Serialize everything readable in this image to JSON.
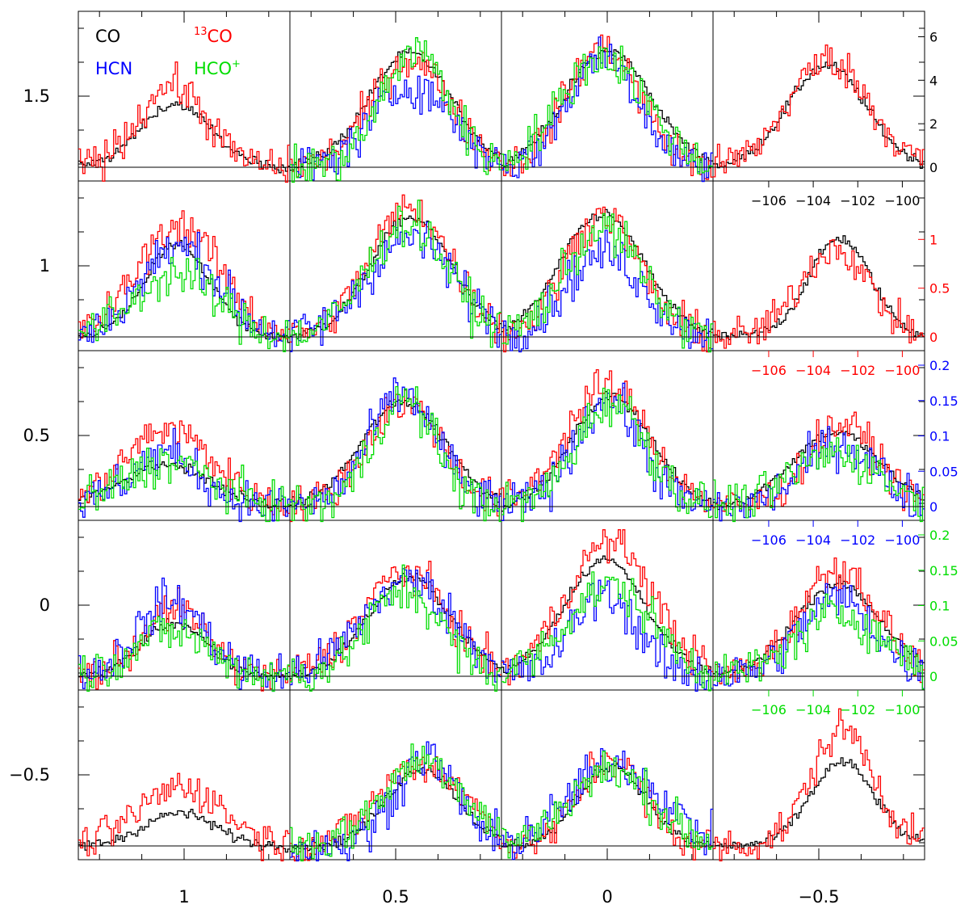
{
  "chart_data": {
    "type": "line",
    "style": "step",
    "grid_rows": 5,
    "grid_cols": 4,
    "outer_axes": {
      "x_ticks": [
        1,
        0.5,
        0,
        -0.5
      ],
      "x_tick_labels": [
        "1",
        "0.5",
        "0",
        "−0.5"
      ],
      "x_range": [
        1.25,
        -0.75
      ],
      "y_ticks": [
        1.5,
        1,
        0.5,
        0,
        -0.5
      ],
      "y_tick_labels": [
        "1.5",
        "1",
        "0.5",
        "0",
        "−0.5"
      ],
      "y_range": [
        -0.75,
        1.75
      ]
    },
    "velocity_range": [
      -108.5,
      -99.0
    ],
    "velocity_ticks": [
      -106,
      -104,
      -102,
      -100
    ],
    "series": [
      {
        "name": "CO",
        "legend": "CO",
        "color": "#000000",
        "scale_ticks": [
          0,
          2,
          4,
          6
        ],
        "scale_labels": [
          "0",
          "2",
          "4",
          "6"
        ],
        "scale_range": [
          -0.5,
          6.5
        ],
        "velocity_labels": [
          "−106",
          "−104",
          "−102",
          "−100"
        ]
      },
      {
        "name": "13CO",
        "legend_sup": "13",
        "legend": "CO",
        "color": "#ff0000",
        "scale_ticks": [
          0,
          0.5,
          1
        ],
        "scale_labels": [
          "0",
          "0.5",
          "1"
        ],
        "scale_range": [
          -0.08,
          1.45
        ],
        "velocity_labels": [
          "−106",
          "−104",
          "−102",
          "−100"
        ]
      },
      {
        "name": "HCN",
        "legend": "HCN",
        "color": "#0000ff",
        "scale_ticks": [
          0,
          0.05,
          0.1,
          0.15,
          0.2
        ],
        "scale_labels": [
          "0",
          "0.05",
          "0.1",
          "0.15",
          "0.2"
        ],
        "scale_range": [
          -0.015,
          0.2
        ],
        "velocity_labels": [
          "−106",
          "−104",
          "−102",
          "−100"
        ]
      },
      {
        "name": "HCO+",
        "legend": "HCO",
        "legend_sup": "+",
        "color": "#00dd00",
        "scale_ticks": [
          0,
          0.05,
          0.1,
          0.15,
          0.2
        ],
        "scale_labels": [
          "0",
          "0.05",
          "0.1",
          "0.15",
          "0.2"
        ],
        "scale_range": [
          -0.015,
          0.2
        ],
        "velocity_labels": [
          "−106",
          "−104",
          "−102",
          "−100"
        ]
      }
    ],
    "peak_velocity": [
      [
        -104.2,
        -103.0,
        -103.8,
        -103.2
      ],
      [
        -104.0,
        -103.2,
        -103.8,
        -103.0
      ],
      [
        -104.5,
        -103.3,
        -103.6,
        -102.8
      ],
      [
        -104.3,
        -103.2,
        -103.8,
        -102.8
      ],
      [
        -104.0,
        -102.5,
        -103.5,
        -102.8
      ]
    ],
    "line_width": 1.3,
    "peak_fraction": {
      "CO": [
        [
          0.42,
          0.76,
          0.78,
          0.68
        ],
        [
          0.62,
          0.8,
          0.82,
          0.66
        ],
        [
          0.28,
          0.7,
          0.74,
          0.5
        ],
        [
          0.36,
          0.66,
          0.78,
          0.62
        ],
        [
          0.22,
          0.52,
          0.54,
          0.56
        ]
      ],
      "13CO": [
        [
          0.55,
          0.72,
          0.8,
          0.72
        ],
        [
          0.75,
          0.86,
          0.82,
          0.6
        ],
        [
          0.52,
          0.7,
          0.8,
          0.55
        ],
        [
          0.45,
          0.7,
          0.9,
          0.72
        ],
        [
          0.4,
          0.55,
          0.6,
          0.78
        ]
      ],
      "HCN": [
        [
          0.0,
          0.55,
          0.75,
          0.0
        ],
        [
          0.6,
          0.66,
          0.56,
          0.0
        ],
        [
          0.36,
          0.75,
          0.72,
          0.42
        ],
        [
          0.5,
          0.64,
          0.56,
          0.52
        ],
        [
          0.0,
          0.6,
          0.56,
          0.0
        ]
      ],
      "HCO+": [
        [
          0.0,
          0.78,
          0.74,
          0.0
        ],
        [
          0.42,
          0.76,
          0.72,
          0.0
        ],
        [
          0.3,
          0.72,
          0.7,
          0.36
        ],
        [
          0.3,
          0.58,
          0.6,
          0.42
        ],
        [
          0.0,
          0.58,
          0.5,
          0.0
        ]
      ]
    }
  }
}
